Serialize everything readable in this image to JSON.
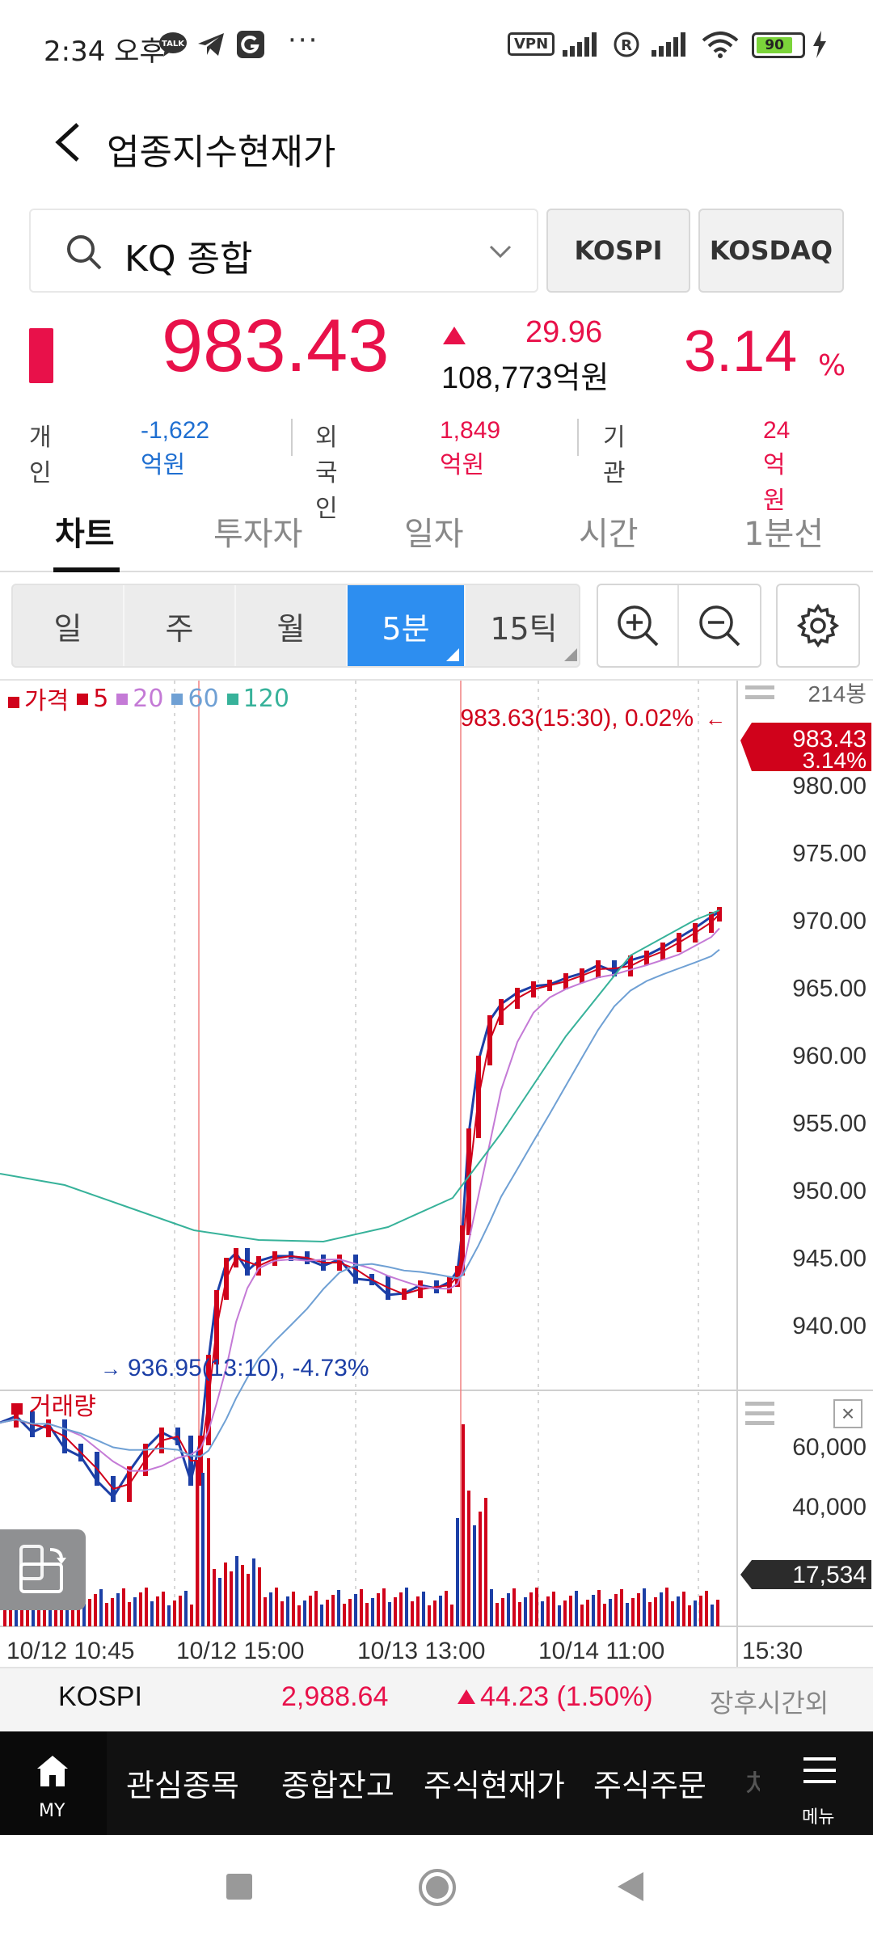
{
  "status_bar": {
    "time": "2:34 오후",
    "more_dots": "···",
    "vpn": "VPN",
    "battery": "90"
  },
  "header": {
    "title": "업종지수현재가"
  },
  "search": {
    "value": "KQ 종합"
  },
  "market_buttons": [
    "KOSPI",
    "KOSDAQ"
  ],
  "quote": {
    "price": "983.43",
    "change": "29.96",
    "amount": "108,773억원",
    "change_pct": "3.14",
    "pct_unit": "%"
  },
  "investors": [
    {
      "label": "개인",
      "value": "-1,622억원",
      "color": "#1f6fd1"
    },
    {
      "label": "외국인",
      "value": "1,849억원",
      "color": "#e8114a"
    },
    {
      "label": "기관",
      "value": "24억원",
      "color": "#e8114a"
    }
  ],
  "tabs": [
    "차트",
    "투자자",
    "일자",
    "시간",
    "1분선"
  ],
  "periods": [
    "일",
    "주",
    "월",
    "5분",
    "15틱"
  ],
  "chart": {
    "legend": [
      {
        "label": "가격",
        "color": "#d0021b"
      },
      {
        "label": "5",
        "color": "#d0021b"
      },
      {
        "label": "20",
        "color": "#c47ad6"
      },
      {
        "label": "60",
        "color": "#6fa0d4"
      },
      {
        "label": "120",
        "color": "#37b29a"
      }
    ],
    "candle_count": "214봉",
    "last_price": "983.43",
    "last_pct": "3.14%",
    "high_annotation": "983.63(15:30), 0.02%",
    "low_annotation": "936.95(13:10), -4.73%",
    "y_ticks": [
      "980.00",
      "975.00",
      "970.00",
      "965.00",
      "960.00",
      "955.00",
      "950.00",
      "945.00",
      "940.00"
    ],
    "volume_label": "거래량",
    "volume_ticks": [
      "60,000",
      "40,000"
    ],
    "volume_last": "17,534",
    "x_ticks": [
      "10/12 10:45",
      "10/12 15:00",
      "10/13 13:00",
      "10/14 11:00",
      "15:30"
    ]
  },
  "ticker": {
    "name": "KOSPI",
    "value": "2,988.64",
    "change": "44.23 (1.50%)",
    "extra": "장후시간외"
  },
  "menu": {
    "my": "MY",
    "items": [
      "관심종목",
      "종합잔고",
      "주식현재가",
      "주식주문",
      "차"
    ],
    "more": "메뉴"
  }
}
